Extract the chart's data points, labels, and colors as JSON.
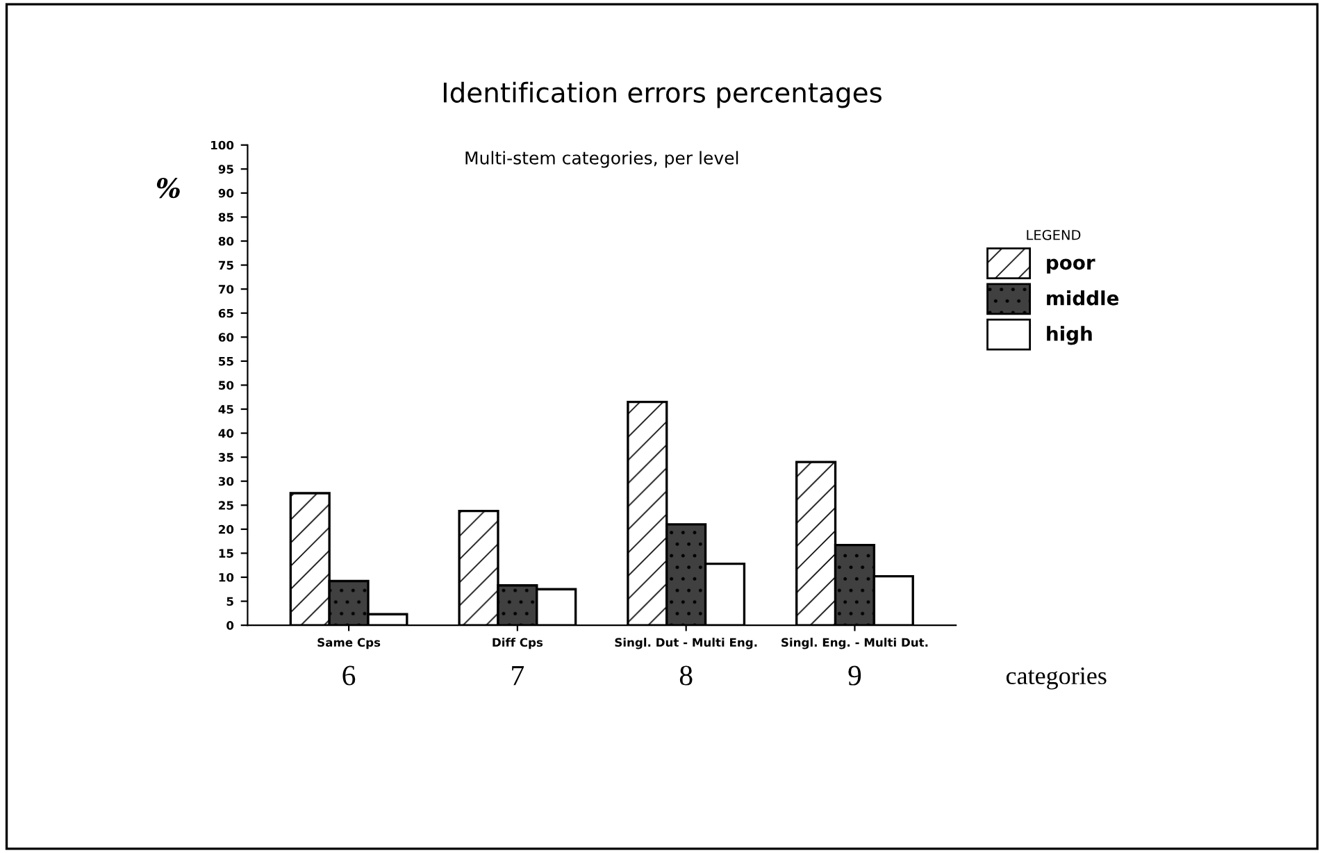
{
  "chart_data": {
    "type": "bar",
    "title": "Identification errors percentages",
    "subtitle": "Multi-stem categories, per level",
    "ylabel": "%",
    "xlabel": "categories",
    "legend_title": "LEGEND",
    "categories": [
      "Same Cps",
      "Diff Cps",
      "Singl. Dut - Multi Eng.",
      "Singl. Eng. - Multi Dut."
    ],
    "series": [
      {
        "name": "poor",
        "color": "#ffffff",
        "values": [
          27.5,
          23.8,
          46.5,
          34
        ]
      },
      {
        "name": "middle",
        "color": "#404040",
        "values": [
          9.2,
          8.3,
          21,
          16.7
        ]
      },
      {
        "name": "high",
        "color": "#ffffff",
        "values": [
          2.3,
          7.5,
          12.8,
          10.2
        ]
      }
    ],
    "annotations": [
      "6",
      "7",
      "8",
      "9"
    ],
    "ylim": [
      0,
      100
    ],
    "yticks": [
      0,
      5,
      10,
      15,
      20,
      25,
      30,
      35,
      40,
      45,
      50,
      55,
      60,
      65,
      70,
      75,
      80,
      85,
      90,
      95,
      100
    ],
    "grid": false,
    "legend": "top right"
  }
}
